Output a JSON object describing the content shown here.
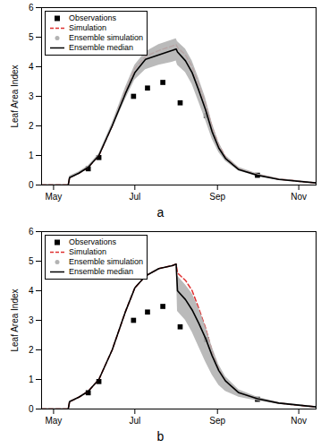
{
  "chart_data": [
    {
      "type": "line",
      "panel": "a",
      "ylabel": "Leaf Area Index",
      "x": [
        112,
        132,
        133,
        140,
        147,
        155,
        165,
        175,
        182,
        190,
        200,
        210,
        213,
        214,
        220,
        225,
        230,
        235,
        240,
        245,
        250,
        260,
        274,
        290,
        318
      ],
      "xlim": [
        112,
        318
      ],
      "xticks": [
        {
          "value": 121,
          "label": "May"
        },
        {
          "value": 182,
          "label": "Jul"
        },
        {
          "value": 244,
          "label": "Sep"
        },
        {
          "value": 305,
          "label": "Nov"
        }
      ],
      "ylim": [
        0,
        6
      ],
      "yticks": [
        0,
        1,
        2,
        3,
        4,
        5,
        6
      ],
      "legend": "top-left",
      "series": [
        {
          "name": "Observations",
          "type": "scatter",
          "marker": "square",
          "color": "#000000",
          "x": [
            147,
            155,
            181,
            191.5,
            203,
            216,
            235.6,
            274
          ],
          "values": [
            0.55,
            0.93,
            3.0,
            3.28,
            3.47,
            2.78,
            2.35,
            0.33
          ]
        },
        {
          "name": "Simulation",
          "type": "line",
          "line_style": "dashed",
          "color": "#e03030",
          "values": [
            0,
            0,
            0.25,
            0.4,
            0.6,
            1.0,
            2.0,
            3.2,
            3.95,
            4.35,
            4.55,
            4.7,
            4.75,
            4.65,
            4.4,
            4.0,
            3.4,
            2.75,
            1.95,
            1.35,
            0.95,
            0.55,
            0.35,
            0.2,
            0.07
          ]
        },
        {
          "name": "Ensemble simulation",
          "type": "band",
          "marker": "circle",
          "color": "#b3b3b3",
          "upper": [
            0,
            0,
            0.3,
            0.45,
            0.65,
            1.05,
            2.1,
            3.3,
            4.05,
            4.5,
            4.75,
            4.9,
            4.95,
            4.85,
            4.6,
            4.2,
            3.6,
            2.95,
            2.1,
            1.45,
            1.0,
            0.6,
            0.38,
            0.22,
            0.08
          ],
          "lower": [
            0,
            0,
            0.2,
            0.35,
            0.55,
            0.95,
            1.9,
            2.9,
            3.55,
            3.9,
            4.05,
            4.15,
            4.2,
            4.05,
            3.8,
            3.4,
            2.8,
            2.2,
            1.55,
            1.1,
            0.8,
            0.47,
            0.3,
            0.17,
            0.06
          ]
        },
        {
          "name": "Ensemble median",
          "type": "line",
          "line_style": "solid",
          "color": "#000000",
          "values": [
            0,
            0,
            0.25,
            0.4,
            0.6,
            1.0,
            2.0,
            3.1,
            3.8,
            4.25,
            4.4,
            4.55,
            4.6,
            4.5,
            4.2,
            3.8,
            3.2,
            2.55,
            1.8,
            1.25,
            0.9,
            0.52,
            0.33,
            0.19,
            0.07
          ]
        }
      ]
    },
    {
      "type": "line",
      "panel": "b",
      "ylabel": "Leaf Area Index",
      "x": [
        112,
        132,
        133,
        140,
        147,
        155,
        165,
        175,
        182,
        190,
        200,
        210,
        213,
        214,
        220,
        225,
        230,
        235,
        240,
        245,
        250,
        260,
        274,
        290,
        318
      ],
      "xlim": [
        112,
        318
      ],
      "xticks": [
        {
          "value": 121,
          "label": "May"
        },
        {
          "value": 182,
          "label": "Jul"
        },
        {
          "value": 244,
          "label": "Sep"
        },
        {
          "value": 305,
          "label": "Nov"
        }
      ],
      "ylim": [
        0,
        6
      ],
      "yticks": [
        0,
        1,
        2,
        3,
        4,
        5,
        6
      ],
      "legend": "top-left",
      "series": [
        {
          "name": "Observations",
          "type": "scatter",
          "marker": "square",
          "color": "#000000",
          "x": [
            147,
            155,
            181,
            191.5,
            203,
            216,
            235.6,
            274
          ],
          "values": [
            0.55,
            0.93,
            3.0,
            3.28,
            3.47,
            2.78,
            2.35,
            0.33
          ]
        },
        {
          "name": "Simulation",
          "type": "line",
          "line_style": "dashed",
          "color": "#e03030",
          "values": [
            0,
            0,
            0.25,
            0.4,
            0.6,
            1.0,
            2.0,
            3.3,
            4.1,
            4.5,
            4.75,
            4.85,
            4.9,
            4.6,
            4.35,
            4.0,
            3.4,
            2.75,
            1.95,
            1.35,
            0.95,
            0.55,
            0.35,
            0.2,
            0.07
          ]
        },
        {
          "name": "Ensemble simulation",
          "type": "band",
          "marker": "circle",
          "color": "#b3b3b3",
          "upper": [
            0,
            0,
            0.25,
            0.4,
            0.6,
            1.0,
            2.0,
            3.3,
            4.1,
            4.5,
            4.75,
            4.85,
            4.9,
            4.5,
            4.2,
            3.9,
            3.4,
            2.8,
            2.1,
            1.5,
            1.1,
            0.65,
            0.4,
            0.22,
            0.08
          ],
          "lower": [
            0,
            0,
            0.25,
            0.4,
            0.6,
            1.0,
            2.0,
            3.3,
            4.1,
            4.5,
            4.75,
            4.85,
            4.9,
            3.3,
            3.0,
            2.6,
            2.1,
            1.6,
            1.15,
            0.8,
            0.6,
            0.4,
            0.27,
            0.16,
            0.06
          ]
        },
        {
          "name": "Ensemble median",
          "type": "line",
          "line_style": "solid",
          "color": "#000000",
          "values": [
            0,
            0,
            0.25,
            0.4,
            0.6,
            1.0,
            2.0,
            3.3,
            4.1,
            4.5,
            4.75,
            4.85,
            4.9,
            4.0,
            3.7,
            3.35,
            2.9,
            2.4,
            1.8,
            1.3,
            0.95,
            0.55,
            0.35,
            0.2,
            0.07
          ]
        }
      ]
    }
  ]
}
